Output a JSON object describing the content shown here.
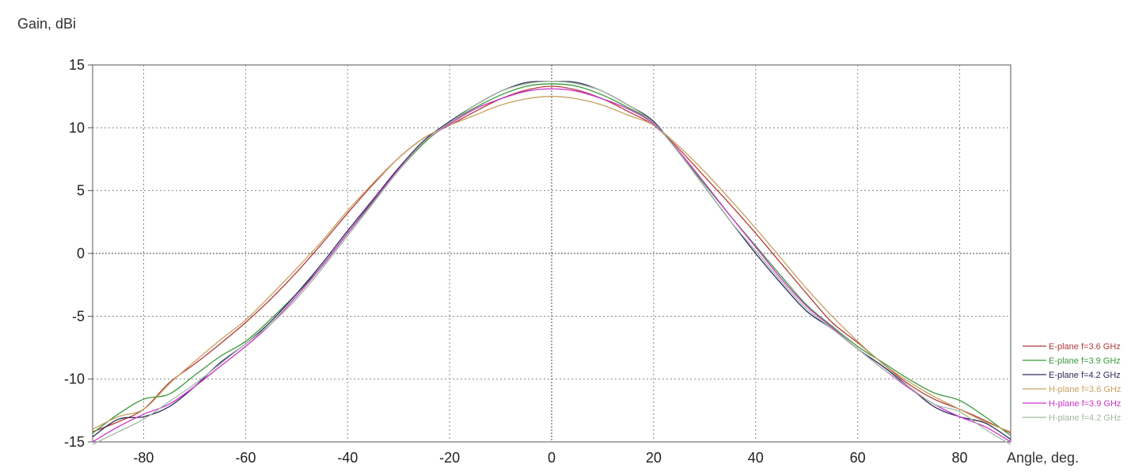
{
  "chart_data": {
    "type": "line",
    "ylabel": "Gain, dBi",
    "xlabel": "Angle, deg.",
    "xlim": [
      -90,
      90
    ],
    "ylim": [
      -15,
      15
    ],
    "x_ticks": [
      -80,
      -60,
      -40,
      -20,
      0,
      20,
      40,
      60,
      80
    ],
    "y_ticks": [
      15,
      10,
      5,
      0,
      -5,
      -10,
      -15
    ],
    "grid": true,
    "legend_position": "bottom-right",
    "x": [
      -90,
      -85,
      -80,
      -75,
      -70,
      -65,
      -60,
      -55,
      -50,
      -45,
      -40,
      -35,
      -30,
      -25,
      -20,
      -15,
      -10,
      -5,
      0,
      5,
      10,
      15,
      20,
      25,
      30,
      35,
      40,
      45,
      50,
      55,
      60,
      65,
      70,
      75,
      80,
      85,
      90
    ],
    "series": [
      {
        "name": "E-plane f=3.6 GHz",
        "color": "#b03a3a",
        "values": [
          -14.2,
          -13.4,
          -12.4,
          -10.3,
          -8.8,
          -7.2,
          -5.5,
          -3.6,
          -1.5,
          0.8,
          3.2,
          5.5,
          7.6,
          9.2,
          10.2,
          11.3,
          12.3,
          13.0,
          13.3,
          13.0,
          12.3,
          11.3,
          10.2,
          8.3,
          6.1,
          3.9,
          1.6,
          -0.8,
          -3.2,
          -5.5,
          -7.1,
          -8.8,
          -10.4,
          -11.6,
          -12.4,
          -13.3,
          -14.3
        ]
      },
      {
        "name": "E-plane f=3.9 GHz",
        "color": "#3a9a3a",
        "values": [
          -14.3,
          -12.8,
          -11.6,
          -11.2,
          -9.7,
          -8.2,
          -7.0,
          -5.2,
          -3.2,
          -1.0,
          1.6,
          4.1,
          6.6,
          8.8,
          10.4,
          11.6,
          12.6,
          13.3,
          13.5,
          13.3,
          12.6,
          11.6,
          10.4,
          8.0,
          5.5,
          3.0,
          0.6,
          -1.8,
          -4.1,
          -5.8,
          -7.4,
          -8.7,
          -10.0,
          -11.1,
          -11.7,
          -13.0,
          -14.5
        ]
      },
      {
        "name": "E-plane f=4.2 GHz",
        "color": "#2a2a5a",
        "values": [
          -14.6,
          -13.2,
          -13.0,
          -12.2,
          -10.6,
          -8.7,
          -7.2,
          -5.4,
          -3.2,
          -0.8,
          1.8,
          4.3,
          6.8,
          9.0,
          10.5,
          11.8,
          12.9,
          13.6,
          13.7,
          13.6,
          12.9,
          11.8,
          10.5,
          8.0,
          5.3,
          2.6,
          0.0,
          -2.4,
          -4.6,
          -6.0,
          -7.6,
          -9.0,
          -10.6,
          -12.2,
          -13.0,
          -13.5,
          -14.8
        ]
      },
      {
        "name": "H-plane f=3.6 GHz",
        "color": "#c8a060",
        "values": [
          -14.0,
          -13.0,
          -12.4,
          -10.4,
          -8.6,
          -6.9,
          -5.3,
          -3.3,
          -1.2,
          1.0,
          3.4,
          5.6,
          7.6,
          9.2,
          10.2,
          11.0,
          11.8,
          12.3,
          12.5,
          12.3,
          11.8,
          11.0,
          10.2,
          8.5,
          6.5,
          4.3,
          2.0,
          -0.4,
          -2.8,
          -5.0,
          -7.0,
          -8.8,
          -10.2,
          -11.4,
          -12.4,
          -13.4,
          -14.2
        ]
      },
      {
        "name": "H-plane f=3.9 GHz",
        "color": "#cc33cc",
        "values": [
          -15.0,
          -13.8,
          -12.8,
          -12.0,
          -10.6,
          -9.0,
          -7.4,
          -5.6,
          -3.4,
          -1.0,
          1.6,
          4.2,
          6.7,
          8.9,
          10.3,
          11.5,
          12.3,
          12.9,
          13.1,
          12.9,
          12.3,
          11.5,
          10.3,
          8.1,
          5.6,
          3.0,
          0.5,
          -2.0,
          -4.2,
          -5.9,
          -7.6,
          -9.2,
          -10.7,
          -12.0,
          -13.0,
          -13.8,
          -15.0
        ]
      },
      {
        "name": "H-plane f=4.2 GHz",
        "color": "#a0b8a0",
        "values": [
          -15.2,
          -14.2,
          -13.2,
          -11.8,
          -10.4,
          -8.8,
          -7.2,
          -5.6,
          -3.6,
          -1.2,
          1.4,
          4.0,
          6.6,
          8.9,
          10.4,
          11.8,
          12.9,
          13.5,
          13.7,
          13.5,
          12.9,
          11.8,
          10.4,
          8.0,
          5.3,
          2.6,
          0.2,
          -2.2,
          -4.4,
          -6.0,
          -7.6,
          -9.2,
          -10.6,
          -12.0,
          -12.6,
          -14.0,
          -15.2
        ]
      }
    ]
  }
}
